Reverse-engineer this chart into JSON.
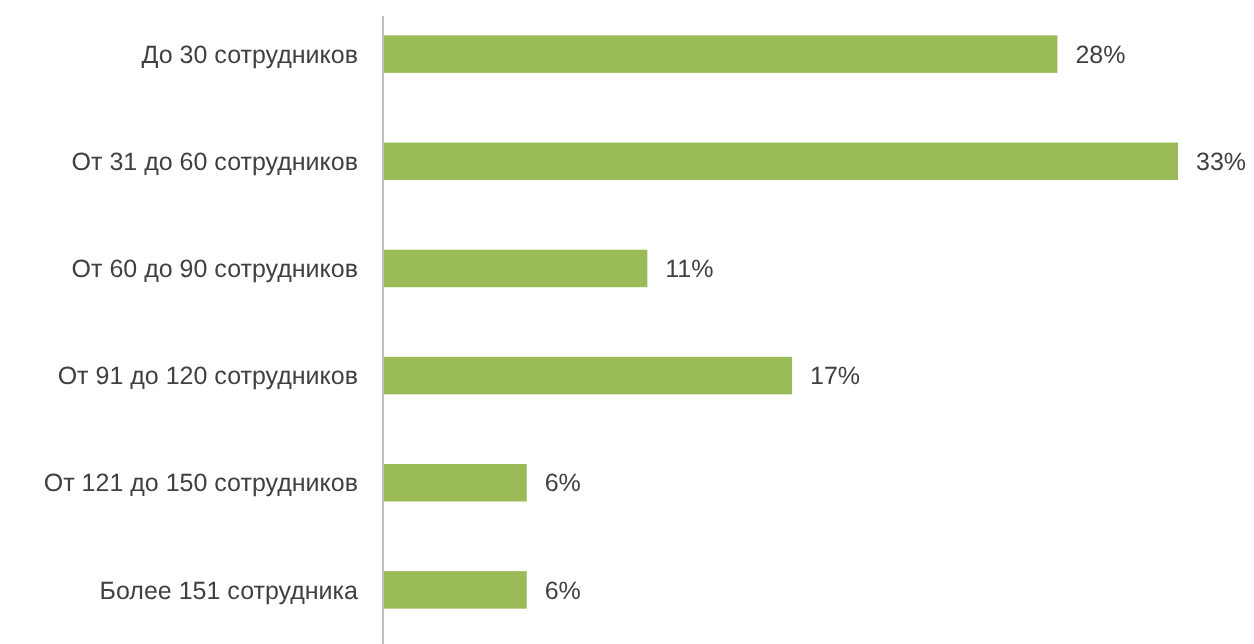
{
  "chart_data": {
    "type": "bar",
    "orientation": "horizontal",
    "categories": [
      "До 30 сотрудников",
      "От 31 до 60 сотрудников",
      "От 60 до 90 сотрудников",
      "От 91 до 120 сотрудников",
      "От 121 до 150 сотрудников",
      "Более 151 сотрудника"
    ],
    "values": [
      28,
      33,
      11,
      17,
      6,
      6
    ],
    "value_labels": [
      "28%",
      "33%",
      "11%",
      "17%",
      "6%",
      "6%"
    ],
    "color": "#9bbb59"
  }
}
